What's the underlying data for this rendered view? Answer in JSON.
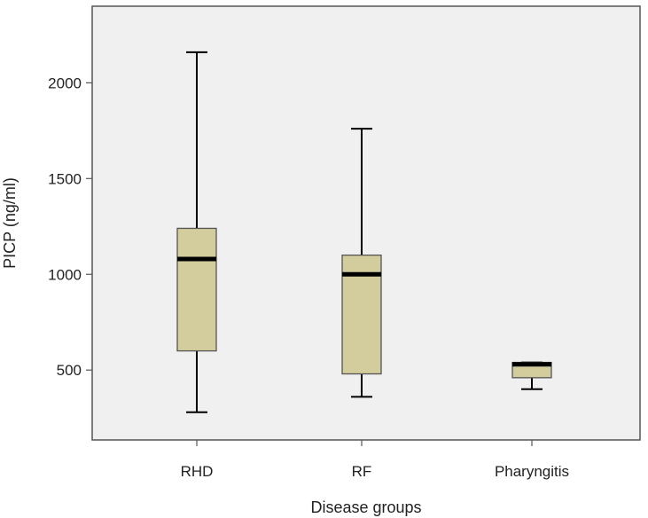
{
  "chart_data": {
    "type": "boxplot",
    "xlabel": "Disease groups",
    "ylabel": "PICP (ng/ml)",
    "categories": [
      "RHD",
      "RF",
      "Pharyngitis"
    ],
    "boxes": [
      {
        "category": "RHD",
        "min": 280,
        "q1": 600,
        "median": 1080,
        "q3": 1240,
        "max": 2160
      },
      {
        "category": "RF",
        "min": 360,
        "q1": 480,
        "median": 1000,
        "q3": 1100,
        "max": 1760
      },
      {
        "category": "Pharyngitis",
        "min": 400,
        "q1": 460,
        "median": 530,
        "q3": 540,
        "max": 540
      }
    ],
    "yticks": [
      500,
      1000,
      1500,
      2000
    ],
    "ylim": [
      135,
      2400
    ],
    "grid": false,
    "colors": {
      "plot_background": "#f0f0f0",
      "box_fill": "#d3cc9c",
      "box_stroke": "#555555",
      "whisker": "#000000",
      "median": "#000000",
      "frame": "#555555"
    }
  }
}
